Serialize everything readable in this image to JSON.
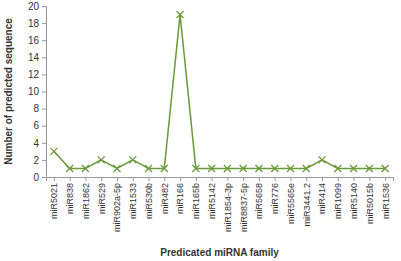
{
  "chart_data": {
    "type": "line",
    "x_label": "Predicated miRNA family",
    "y_label": "Number of predicted sequence",
    "categories": [
      "miR5021",
      "miR838",
      "miR1862",
      "miR529",
      "miR902a-5p",
      "miR1533",
      "miR530b",
      "miR482",
      "miR166",
      "miR165b",
      "miR5142",
      "miR1854-3p",
      "miR8837-5p",
      "miR5658",
      "miR776",
      "miR5565e",
      "miR3441.2",
      "miR414",
      "miR1099",
      "miR5140",
      "miR5015b",
      "miR1536"
    ],
    "values": [
      3,
      1,
      1,
      2,
      1,
      2,
      1,
      1,
      19,
      1,
      1,
      1,
      1,
      1,
      1,
      1,
      1,
      2,
      1,
      1,
      1,
      1
    ],
    "color": "#6b9a3c",
    "marker": "x",
    "ylim": [
      0,
      20
    ],
    "yticks": [
      0,
      2,
      4,
      6,
      8,
      10,
      12,
      14,
      16,
      18,
      20
    ],
    "grid": false
  }
}
